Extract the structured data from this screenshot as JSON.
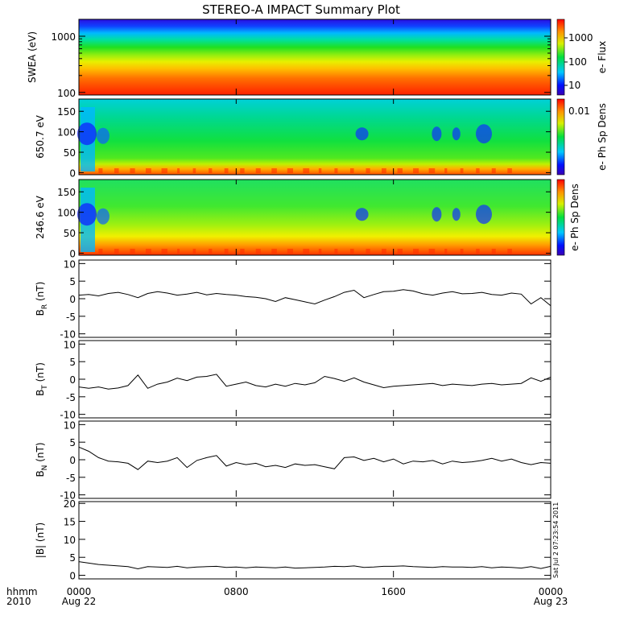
{
  "title": "STEREO-A IMPACT Summary Plot",
  "stamp": "Sat Jul  2 07:23:54 2011",
  "x_axis": {
    "row1_label": "hhmm",
    "row2_label": "2010",
    "ticks": [
      {
        "time": "0000",
        "date": "Aug 22",
        "hour": 0
      },
      {
        "time": "0800",
        "date": "",
        "hour": 8
      },
      {
        "time": "1600",
        "date": "",
        "hour": 16
      },
      {
        "time": "0000",
        "date": "Aug 23",
        "hour": 24
      }
    ]
  },
  "chart_data": [
    {
      "type": "heatmap",
      "name": "swea",
      "ylabel": "SWEA (eV)",
      "yscale": "log",
      "ylim": [
        90,
        2000
      ],
      "yticks": [
        {
          "value": 100,
          "label": "100"
        },
        {
          "value": 1000,
          "label": "1000"
        }
      ],
      "colorbar": {
        "label": "e- Flux",
        "scale": "log",
        "ticks": [
          "10",
          "100",
          "1000"
        ]
      },
      "description_rows_high_to_low_energy": [
        "blue",
        "cyan",
        "green",
        "yellow",
        "orange",
        "red"
      ]
    },
    {
      "type": "heatmap",
      "name": "pad650",
      "ylabel": "650.7 eV",
      "ylim": [
        -5,
        180
      ],
      "yticks": [
        {
          "value": 0,
          "label": "0"
        },
        {
          "value": 50,
          "label": "50"
        },
        {
          "value": 100,
          "label": "100"
        },
        {
          "value": 150,
          "label": "150"
        }
      ],
      "colorbar": {
        "label": "e- Ph Sp Dens",
        "scale": "log",
        "ticks": [
          "0.01"
        ]
      }
    },
    {
      "type": "heatmap",
      "name": "pad246",
      "ylabel": "246.6 eV",
      "ylim": [
        -5,
        180
      ],
      "yticks": [
        {
          "value": 0,
          "label": "0"
        },
        {
          "value": 50,
          "label": "50"
        },
        {
          "value": 100,
          "label": "100"
        },
        {
          "value": 150,
          "label": "150"
        }
      ],
      "colorbar": {
        "label": "e- Ph Sp Dens",
        "scale": "log",
        "ticks": []
      }
    },
    {
      "type": "line",
      "name": "BR",
      "ylabel_base": "B",
      "ylabel_sub": "R",
      "ylabel_unit": " (nT)",
      "ylim": [
        -11,
        11
      ],
      "yticks": [
        -10,
        -5,
        0,
        5,
        10
      ],
      "x_hours": [
        0,
        0.5,
        1,
        1.5,
        2,
        2.5,
        3,
        3.5,
        4,
        4.5,
        5,
        5.5,
        6,
        6.5,
        7,
        7.5,
        8,
        8.5,
        9,
        9.5,
        10,
        10.5,
        11,
        11.5,
        12,
        12.5,
        13,
        13.5,
        14,
        14.5,
        15,
        15.5,
        16,
        16.5,
        17,
        17.5,
        18,
        18.5,
        19,
        19.5,
        20,
        20.5,
        21,
        21.5,
        22,
        22.5,
        23,
        23.5,
        24
      ],
      "values": [
        1.0,
        1.2,
        0.8,
        1.5,
        1.8,
        1.2,
        0.3,
        1.5,
        2.0,
        1.6,
        1.0,
        1.3,
        1.8,
        1.1,
        1.5,
        1.2,
        1.0,
        0.6,
        0.4,
        0.0,
        -0.8,
        0.3,
        -0.3,
        -0.9,
        -1.5,
        -0.4,
        0.6,
        1.8,
        2.4,
        0.3,
        1.2,
        2.0,
        2.1,
        2.6,
        2.2,
        1.4,
        1.0,
        1.6,
        2.0,
        1.4,
        1.5,
        1.8,
        1.2,
        1.0,
        1.6,
        1.3,
        -1.5,
        0.3,
        -2.0
      ]
    },
    {
      "type": "line",
      "name": "BT",
      "ylabel_base": "B",
      "ylabel_sub": "T",
      "ylabel_unit": " (nT)",
      "ylim": [
        -11,
        11
      ],
      "yticks": [
        -10,
        -5,
        0,
        5,
        10
      ],
      "x_hours": [
        0,
        0.5,
        1,
        1.5,
        2,
        2.5,
        3,
        3.5,
        4,
        4.5,
        5,
        5.5,
        6,
        6.5,
        7,
        7.5,
        8,
        8.5,
        9,
        9.5,
        10,
        10.5,
        11,
        11.5,
        12,
        12.5,
        13,
        13.5,
        14,
        14.5,
        15,
        15.5,
        16,
        16.5,
        17,
        17.5,
        18,
        18.5,
        19,
        19.5,
        20,
        20.5,
        21,
        21.5,
        22,
        22.5,
        23,
        23.5,
        24
      ],
      "values": [
        -2.2,
        -2.6,
        -2.2,
        -2.8,
        -2.5,
        -1.8,
        1.2,
        -2.6,
        -1.4,
        -0.8,
        0.3,
        -0.4,
        0.6,
        0.8,
        1.4,
        -2.0,
        -1.4,
        -0.8,
        -1.8,
        -2.2,
        -1.4,
        -2.0,
        -1.2,
        -1.6,
        -1.0,
        0.8,
        0.2,
        -0.6,
        0.4,
        -0.8,
        -1.6,
        -2.4,
        -2.0,
        -1.8,
        -1.6,
        -1.4,
        -1.2,
        -1.8,
        -1.4,
        -1.6,
        -1.8,
        -1.4,
        -1.2,
        -1.6,
        -1.4,
        -1.2,
        0.4,
        -0.6,
        0.6
      ]
    },
    {
      "type": "line",
      "name": "BN",
      "ylabel_base": "B",
      "ylabel_sub": "N",
      "ylabel_unit": " (nT)",
      "ylim": [
        -11,
        11
      ],
      "yticks": [
        -10,
        -5,
        0,
        5,
        10
      ],
      "x_hours": [
        0,
        0.5,
        1,
        1.5,
        2,
        2.5,
        3,
        3.5,
        4,
        4.5,
        5,
        5.5,
        6,
        6.5,
        7,
        7.5,
        8,
        8.5,
        9,
        9.5,
        10,
        10.5,
        11,
        11.5,
        12,
        12.5,
        13,
        13.5,
        14,
        14.5,
        15,
        15.5,
        16,
        16.5,
        17,
        17.5,
        18,
        18.5,
        19,
        19.5,
        20,
        20.5,
        21,
        21.5,
        22,
        22.5,
        23,
        23.5,
        24
      ],
      "values": [
        3.6,
        2.4,
        0.6,
        -0.4,
        -0.6,
        -1.0,
        -2.8,
        -0.4,
        -0.8,
        -0.4,
        0.6,
        -2.2,
        -0.2,
        0.6,
        1.2,
        -1.8,
        -0.8,
        -1.4,
        -1.0,
        -2.0,
        -1.6,
        -2.2,
        -1.2,
        -1.6,
        -1.4,
        -2.0,
        -2.6,
        0.6,
        0.8,
        -0.2,
        0.4,
        -0.6,
        0.2,
        -1.2,
        -0.4,
        -0.6,
        -0.2,
        -1.2,
        -0.4,
        -0.8,
        -0.6,
        -0.2,
        0.4,
        -0.4,
        0.2,
        -0.8,
        -1.4,
        -0.8,
        -1.0
      ]
    },
    {
      "type": "line",
      "name": "Bmag",
      "ylabel_base": "|B|",
      "ylabel_sub": "",
      "ylabel_unit": " (nT)",
      "ylim": [
        -1,
        20.5
      ],
      "yticks": [
        0,
        5,
        10,
        15,
        20
      ],
      "x_hours": [
        0,
        0.5,
        1,
        1.5,
        2,
        2.5,
        3,
        3.5,
        4,
        4.5,
        5,
        5.5,
        6,
        6.5,
        7,
        7.5,
        8,
        8.5,
        9,
        9.5,
        10,
        10.5,
        11,
        11.5,
        12,
        12.5,
        13,
        13.5,
        14,
        14.5,
        15,
        15.5,
        16,
        16.5,
        17,
        17.5,
        18,
        18.5,
        19,
        19.5,
        20,
        20.5,
        21,
        21.5,
        22,
        22.5,
        23,
        23.5,
        24
      ],
      "values": [
        3.8,
        3.4,
        3.0,
        2.8,
        2.6,
        2.4,
        1.8,
        2.4,
        2.3,
        2.2,
        2.5,
        2.1,
        2.3,
        2.4,
        2.5,
        2.2,
        2.3,
        2.1,
        2.3,
        2.2,
        2.1,
        2.3,
        2.0,
        2.1,
        2.2,
        2.3,
        2.5,
        2.4,
        2.6,
        2.2,
        2.3,
        2.5,
        2.5,
        2.6,
        2.4,
        2.3,
        2.2,
        2.4,
        2.3,
        2.3,
        2.2,
        2.4,
        2.1,
        2.3,
        2.2,
        2.0,
        2.4,
        1.9,
        2.5
      ]
    }
  ]
}
